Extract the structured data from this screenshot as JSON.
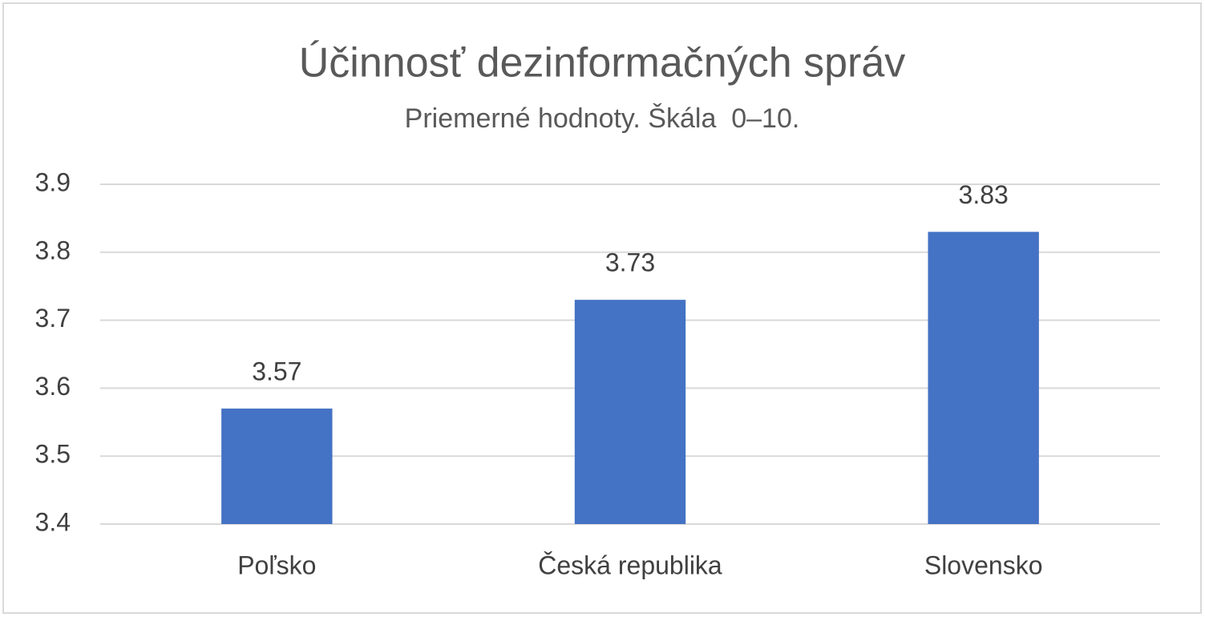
{
  "chart_data": {
    "type": "bar",
    "title": "Účinnosť dezinformačných správ",
    "subtitle": "Priemerné hodnoty. Škála  0–10.",
    "categories": [
      "Poľsko",
      "Česká republika",
      "Slovensko"
    ],
    "values": [
      3.57,
      3.73,
      3.83
    ],
    "color": "#4472c4",
    "ylim": [
      3.4,
      3.9
    ],
    "yticks": [
      3.4,
      3.5,
      3.6,
      3.7,
      3.8,
      3.9
    ],
    "grid": true
  }
}
